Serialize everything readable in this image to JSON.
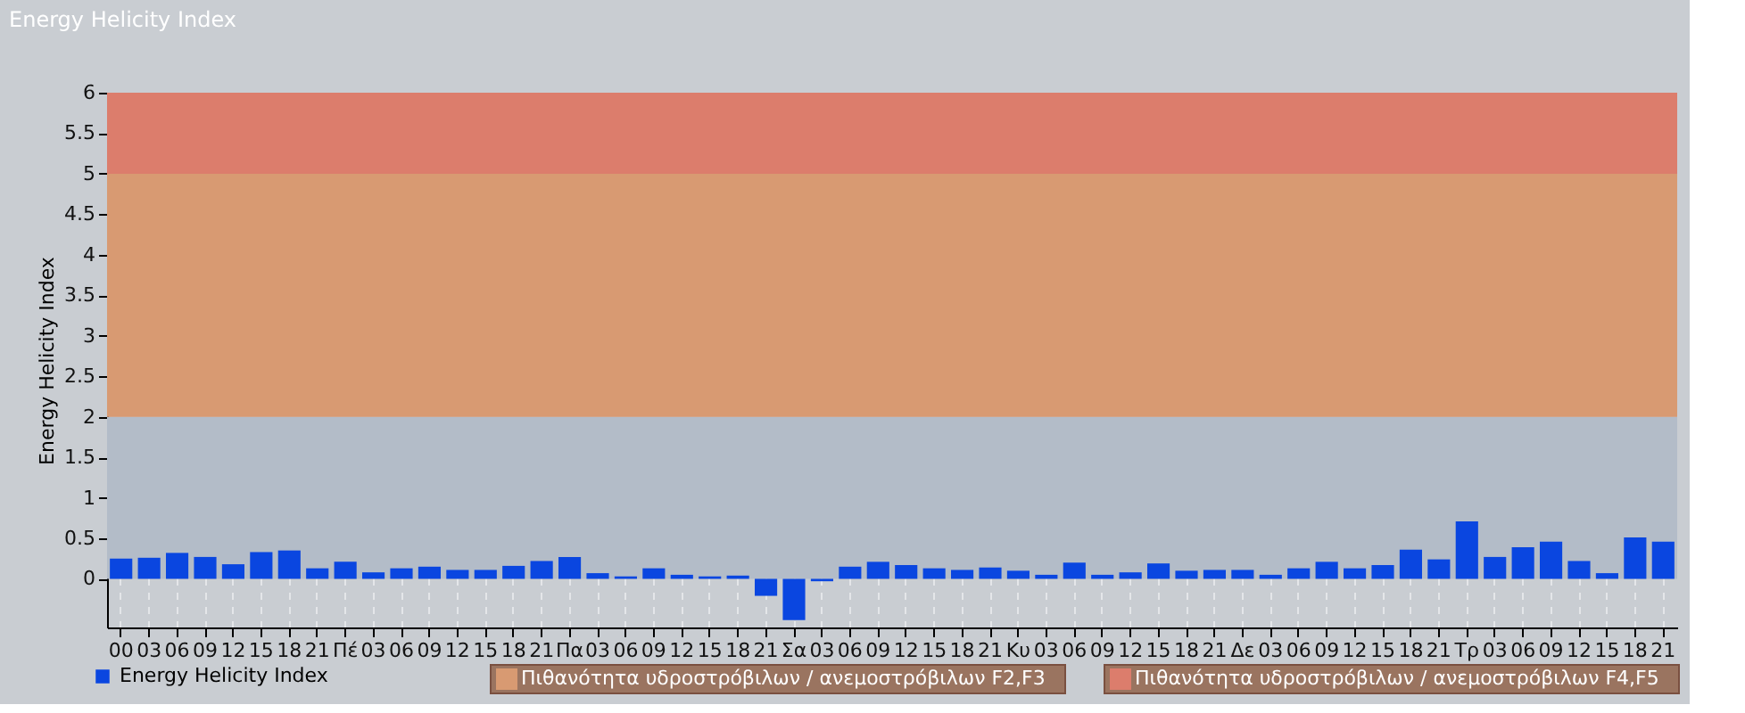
{
  "chart_data": {
    "type": "bar",
    "title": "Energy Helicity Index",
    "ylabel": "Energy Helicity Index",
    "categories": [
      "00",
      "03",
      "06",
      "09",
      "12",
      "15",
      "18",
      "21",
      "Πέ",
      "03",
      "06",
      "09",
      "12",
      "15",
      "18",
      "21",
      "Πα",
      "03",
      "06",
      "09",
      "12",
      "15",
      "18",
      "21",
      "Σα",
      "03",
      "06",
      "09",
      "12",
      "15",
      "18",
      "21",
      "Κυ",
      "03",
      "06",
      "09",
      "12",
      "15",
      "18",
      "21",
      "Δε",
      "03",
      "06",
      "09",
      "12",
      "15",
      "18",
      "21",
      "Τρ",
      "03",
      "06",
      "09",
      "12",
      "15",
      "18",
      "21"
    ],
    "series": [
      {
        "name": "Energy Helicity Index",
        "color": "#0a46e0",
        "values": [
          0.25,
          0.26,
          0.32,
          0.27,
          0.18,
          0.33,
          0.35,
          0.13,
          0.21,
          0.08,
          0.13,
          0.15,
          0.11,
          0.11,
          0.16,
          0.22,
          0.27,
          0.07,
          0.03,
          0.13,
          0.05,
          0.03,
          0.04,
          -0.21,
          -0.51,
          -0.03,
          0.15,
          0.21,
          0.17,
          0.13,
          0.11,
          0.14,
          0.1,
          0.05,
          0.2,
          0.05,
          0.08,
          0.19,
          0.1,
          0.11,
          0.11,
          0.05,
          0.13,
          0.21,
          0.13,
          0.17,
          0.36,
          0.24,
          0.71,
          0.27,
          0.39,
          0.46,
          0.22,
          0.07,
          0.51,
          0.46
        ]
      }
    ],
    "ylim": [
      -0.6,
      6
    ],
    "yticks": [
      0,
      0.5,
      1,
      1.5,
      2,
      2.5,
      3,
      3.5,
      4,
      4.5,
      5,
      5.5,
      6
    ],
    "bands": [
      {
        "axis": "y",
        "from": 0,
        "to": 2,
        "color": "#b3bcc8"
      },
      {
        "axis": "y",
        "from": 2,
        "to": 5,
        "color": "#d89a72",
        "label": "Πιθανότητα υδροστρόβιλων / ανεμοστρόβιλων F2,F3"
      },
      {
        "axis": "y",
        "from": 5,
        "to": 6,
        "color": "#dc7d6c",
        "label": "Πιθανότητα υδροστρόβιλων / ανεμοστρόβιλων F4,F5"
      }
    ],
    "grid": true,
    "legend": "bottom left"
  }
}
